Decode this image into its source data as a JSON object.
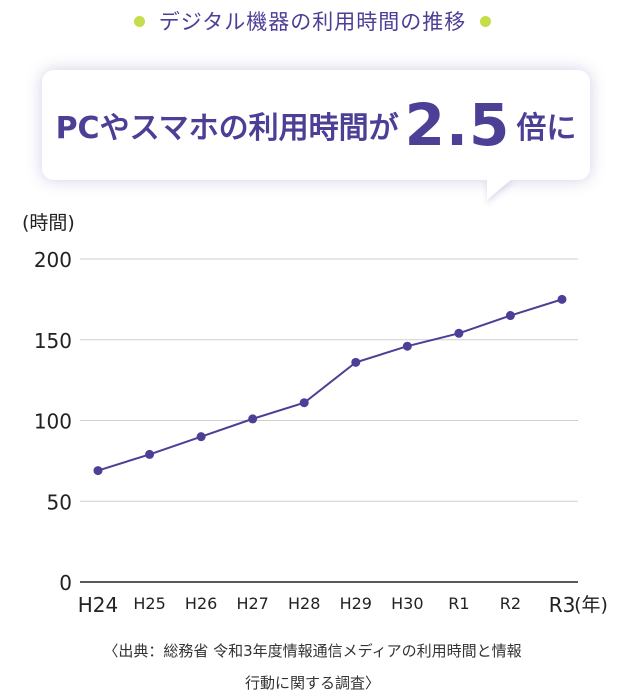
{
  "header": {
    "title": "デジタル機器の利用時間の推移",
    "bullet_color": "#c5dd4a",
    "accent_color": "#4b3f96"
  },
  "callout": {
    "prefix": "PCやスマホの利用時間が",
    "highlight": "2.5",
    "suffix": "倍に"
  },
  "chart_data": {
    "type": "line",
    "ylabel": "(時間)",
    "xlabel": "(年)",
    "ylim": [
      0,
      200
    ],
    "yticks": [
      0,
      50,
      100,
      150,
      200
    ],
    "grid": true,
    "categories": [
      "H24",
      "H25",
      "H26",
      "H27",
      "H28",
      "H29",
      "H30",
      "R1",
      "R2",
      "R3"
    ],
    "series": [
      {
        "values": [
          69,
          79,
          90,
          101,
          111,
          136,
          146,
          154,
          165,
          175
        ],
        "color": "#4b3f96"
      }
    ]
  },
  "source": {
    "line1": "〈出典：総務省 令和3年度情報通信メディアの利用時間と情報",
    "line2": "行動に関する調査〉"
  }
}
